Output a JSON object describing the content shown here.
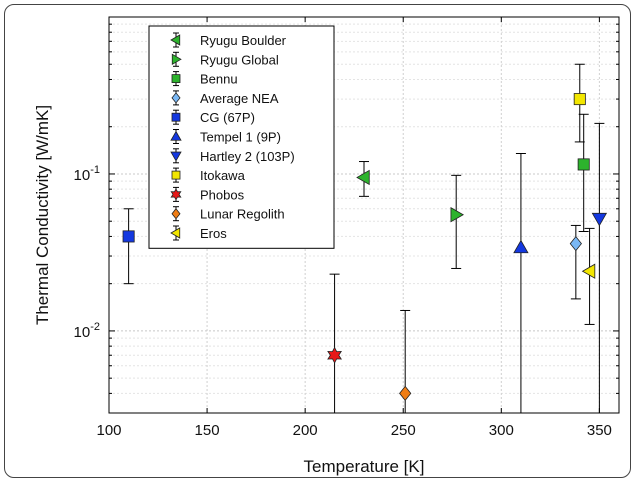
{
  "chart_data": {
    "type": "scatter",
    "xlabel": "Temperature [K]",
    "ylabel": "Thermal Conductivity [W/mK]",
    "xlim": [
      100,
      360
    ],
    "ylim": [
      0.003,
      1.0
    ],
    "y_scale": "log",
    "grid": true,
    "legend_position": "upper-left",
    "x_ticks": [
      "100",
      "150",
      "200",
      "250",
      "300",
      "350"
    ],
    "y_ticks": [
      {
        "base": "10",
        "exp": "-2"
      },
      {
        "base": "10",
        "exp": "-1"
      }
    ],
    "series": [
      {
        "name": "Ryugu Boulder",
        "marker": "triangle-left",
        "color": "#2db32d",
        "x": 230,
        "y": 0.095,
        "err_low": 0.072,
        "err_high": 0.12
      },
      {
        "name": "Ryugu Global",
        "marker": "triangle-right",
        "color": "#2db32d",
        "x": 277,
        "y": 0.055,
        "err_low": 0.025,
        "err_high": 0.098
      },
      {
        "name": "Bennu",
        "marker": "square",
        "color": "#2db32d",
        "x": 342,
        "y": 0.115,
        "err_low": 0.043,
        "err_high": 0.24
      },
      {
        "name": "Average NEA",
        "marker": "diamond",
        "color": "#7ab8f5",
        "x": 338,
        "y": 0.036,
        "err_low": 0.016,
        "err_high": 0.047
      },
      {
        "name": "CG (67P)",
        "marker": "square",
        "color": "#1438e0",
        "x": 110,
        "y": 0.04,
        "err_low": 0.02,
        "err_high": 0.06
      },
      {
        "name": "Tempel 1 (9P)",
        "marker": "triangle-up",
        "color": "#1438e0",
        "x": 310,
        "y": 0.034,
        "err_low": 0.003,
        "err_high": 0.135
      },
      {
        "name": "Hartley 2 (103P)",
        "marker": "triangle-down",
        "color": "#1438e0",
        "x": 350,
        "y": 0.052,
        "err_low": 0.003,
        "err_high": 0.21
      },
      {
        "name": "Itokawa",
        "marker": "square",
        "color": "#f2e600",
        "x": 340,
        "y": 0.3,
        "err_low": 0.16,
        "err_high": 0.5
      },
      {
        "name": "Phobos",
        "marker": "hexagram",
        "color": "#e81818",
        "x": 215,
        "y": 0.007,
        "err_low": 0.003,
        "err_high": 0.023
      },
      {
        "name": "Lunar Regolith",
        "marker": "diamond",
        "color": "#f07d14",
        "x": 251,
        "y": 0.004,
        "err_low": 0.003,
        "err_high": 0.0135
      },
      {
        "name": "Eros",
        "marker": "triangle-left",
        "color": "#f2e600",
        "x": 345,
        "y": 0.024,
        "err_low": 0.011,
        "err_high": 0.045
      }
    ]
  }
}
